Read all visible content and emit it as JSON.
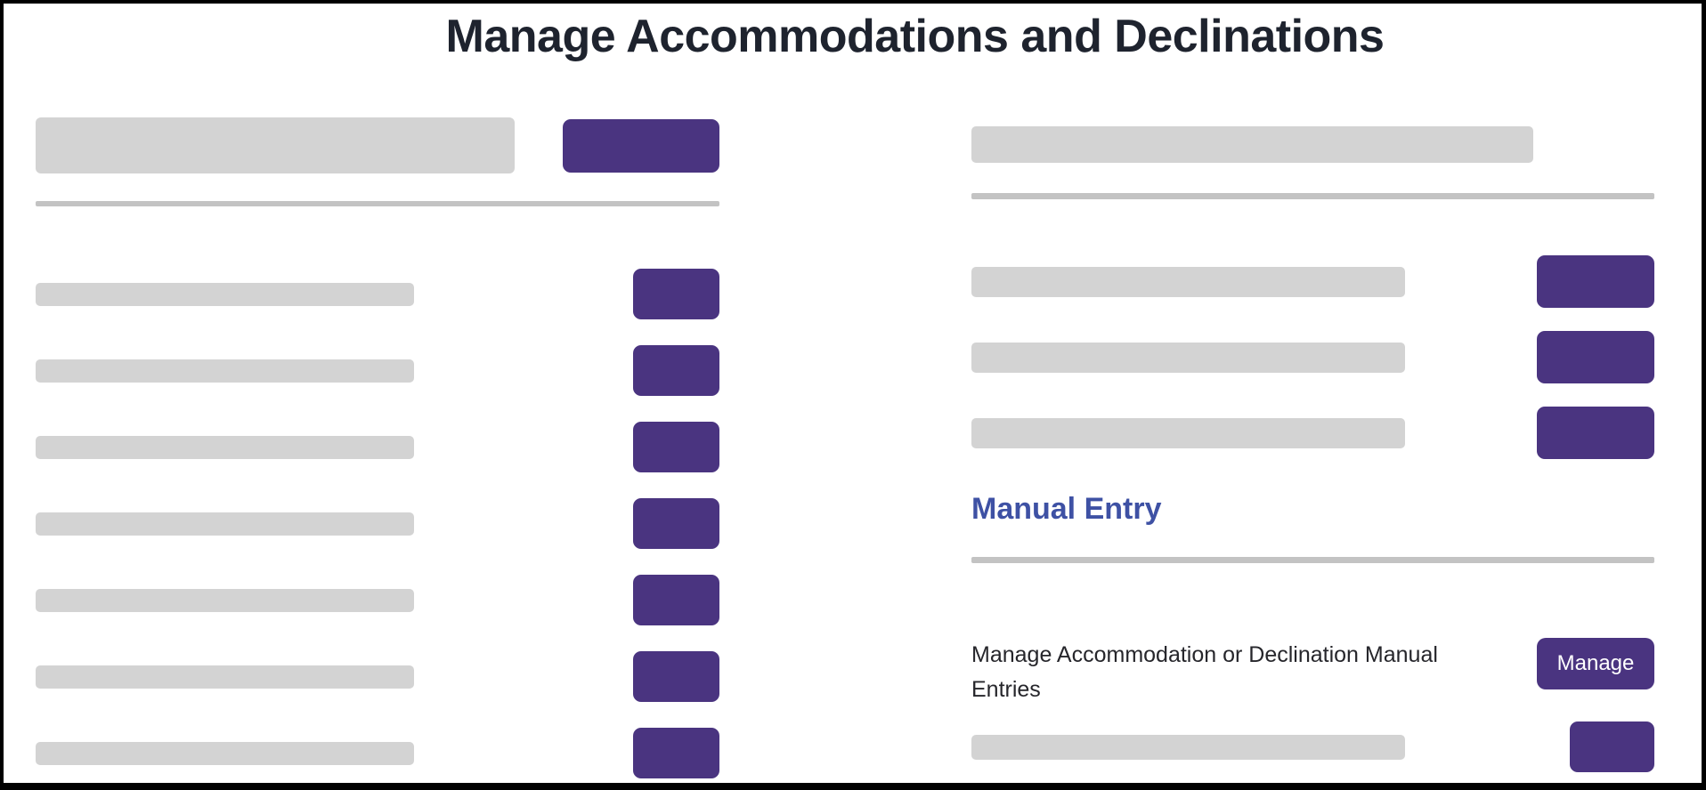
{
  "title": "Manage Accommodations and Declinations",
  "colors": {
    "accent_purple": "#4a3480",
    "heading_blue": "#3e51a4",
    "placeholder_gray": "#d3d3d3",
    "divider_gray": "#c3c3c3",
    "title_dark": "#1e232e",
    "body_dark": "#26262b"
  },
  "left_panel": {
    "placeholder_row_count": 7
  },
  "right_panel": {
    "placeholder_row_count": 3,
    "manual_entry": {
      "heading": "Manual Entry",
      "description": "Manage Accommodation or Declination Manual Entries",
      "button_label": "Manage"
    }
  }
}
